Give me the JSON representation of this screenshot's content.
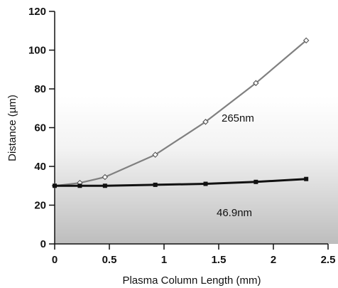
{
  "chart_data": {
    "type": "line",
    "title": "",
    "xlabel": "Plasma Column Length (mm)",
    "ylabel": "Distance (µm)",
    "xlim": [
      0,
      2.5
    ],
    "ylim": [
      0,
      120
    ],
    "xticks": [
      0,
      0.5,
      1,
      1.5,
      2,
      2.5
    ],
    "xtick_labels": [
      "0",
      "0.5",
      "1",
      "1.5",
      "2",
      "2.5"
    ],
    "yticks": [
      0,
      20,
      40,
      60,
      80,
      100,
      120
    ],
    "ytick_labels": [
      "0",
      "20",
      "40",
      "60",
      "80",
      "100",
      "120"
    ],
    "grid": false,
    "legend": "none",
    "series": [
      {
        "name": "265nm",
        "marker": "diamond-open",
        "color": "#808080",
        "x": [
          0,
          0.23,
          0.46,
          0.92,
          1.38,
          1.84,
          2.3
        ],
        "y": [
          30,
          31.5,
          34.5,
          46,
          63,
          83,
          105
        ]
      },
      {
        "name": "46.9nm",
        "marker": "square-filled",
        "color": "#111111",
        "x": [
          0,
          0.23,
          0.46,
          0.92,
          1.38,
          1.84,
          2.3
        ],
        "y": [
          30,
          30,
          30,
          30.5,
          31,
          32,
          33.5
        ]
      }
    ]
  }
}
